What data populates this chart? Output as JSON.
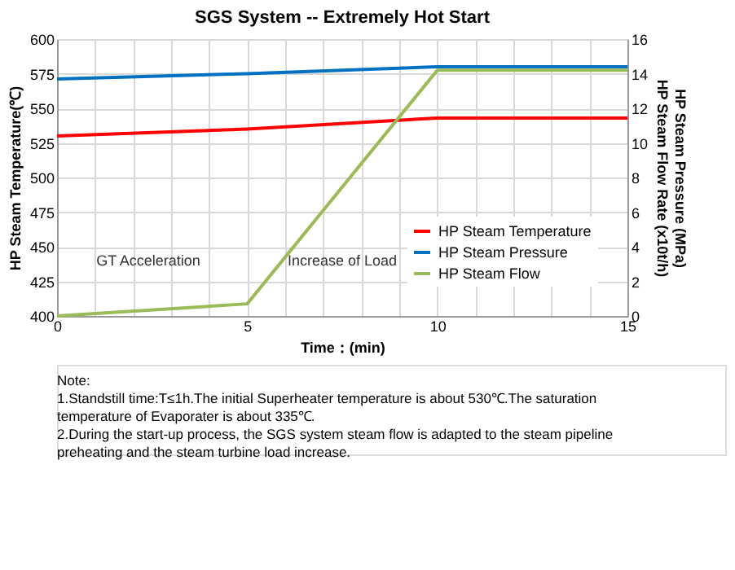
{
  "chart_data": {
    "type": "line",
    "title": "SGS System -- Extremely Hot Start",
    "xlabel": "Time：(min)",
    "ylabel": "HP Steam Temperature(℃)",
    "y2label": "HP Steam Pressure (MPa)\nHP Steam Flow Rate (x10t/h)",
    "x": [
      0,
      5,
      10,
      15
    ],
    "series": [
      {
        "name": "HP Steam Temperature",
        "color": "#ff0000",
        "values": [
          530,
          535,
          543,
          543
        ]
      },
      {
        "name": "HP Steam Pressure",
        "color": "#0070c0",
        "values": [
          13.7,
          14.0,
          14.4,
          14.4
        ],
        "axis": "y2"
      },
      {
        "name": "HP Steam Flow",
        "color": "#9bbb59",
        "values": [
          0,
          0.7,
          14.2,
          14.2
        ],
        "axis": "y2"
      }
    ],
    "xlim": [
      0,
      15
    ],
    "xticks": [
      0,
      {
        "value": 1,
        "label": null
      },
      {
        "value": 2,
        "label": null
      },
      {
        "value": 3,
        "label": null
      },
      {
        "value": 4,
        "label": null
      },
      5,
      {
        "value": 6,
        "label": null
      },
      {
        "value": 7,
        "label": null
      },
      {
        "value": 8,
        "label": null
      },
      {
        "value": 9,
        "label": null
      },
      10,
      {
        "value": 11,
        "label": null
      },
      {
        "value": 12,
        "label": null
      },
      {
        "value": 13,
        "label": null
      },
      {
        "value": 14,
        "label": null
      },
      15
    ],
    "ylim": [
      400,
      600
    ],
    "yticks": [
      400,
      425,
      450,
      475,
      500,
      525,
      550,
      575,
      600
    ],
    "y2lim": [
      0,
      16
    ],
    "y2ticks": [
      0,
      2,
      4,
      6,
      8,
      10,
      12,
      14,
      16
    ],
    "grid": true,
    "legend": "bottom right",
    "marker": "none",
    "line_style": "solid",
    "annotations": [
      "GT Acceleration",
      "Increase of Load",
      "Note:",
      "1.Standstill time:T≤1h.The initial Superheater temperature is about 530℃.The saturation temperature of Evaporater is about 335℃.",
      "2.During the start-up process, the SGS system steam flow is adapted to the steam pipeline preheating and the steam turbine load increase."
    ]
  }
}
